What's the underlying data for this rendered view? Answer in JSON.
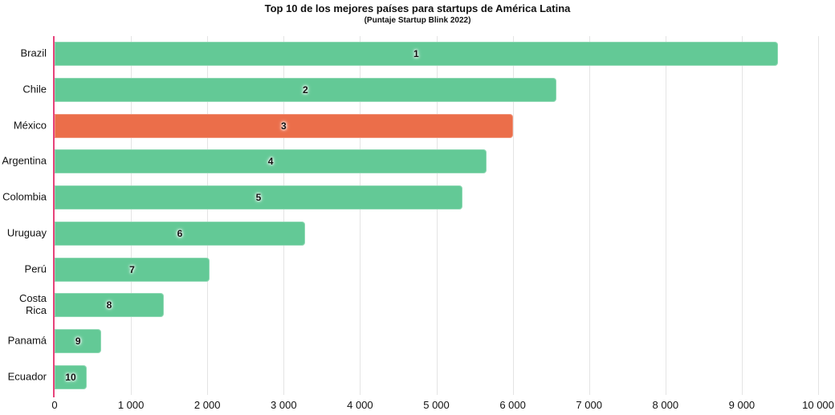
{
  "title": "Top 10 de los mejores países para startups de América Latina",
  "subtitle": "(Puntaje Startup Blink 2022)",
  "colors": {
    "bar": "#63c996",
    "highlight_bar": "#eb6e4a",
    "axis_line": "#e6427a",
    "gridline": "#e4e4e4",
    "text": "#111111"
  },
  "chart_data": {
    "type": "bar",
    "orientation": "horizontal",
    "title": "Top 10 de los mejores países para startups de América Latina",
    "subtitle": "(Puntaje Startup Blink 2022)",
    "categories": [
      "Brazil",
      "Chile",
      "México",
      "Argentina",
      "Colombia",
      "Uruguay",
      "Perú",
      "Costa Rica",
      "Panamá",
      "Ecuador"
    ],
    "values": [
      9470,
      6570,
      6000,
      5660,
      5340,
      3280,
      2030,
      1430,
      615,
      420
    ],
    "bar_labels": [
      "1",
      "2",
      "3",
      "4",
      "5",
      "6",
      "7",
      "8",
      "9",
      "10"
    ],
    "highlighted_category": "México",
    "xlim": [
      0,
      10000
    ],
    "x_ticks": [
      0,
      1000,
      2000,
      3000,
      4000,
      5000,
      6000,
      7000,
      8000,
      9000,
      10000
    ],
    "x_tick_labels": [
      "0",
      "1 000",
      "2 000",
      "3 000",
      "4 000",
      "5 000",
      "6 000",
      "7 000",
      "8 000",
      "9 000",
      "10 000"
    ],
    "grid": true,
    "legend": false
  }
}
